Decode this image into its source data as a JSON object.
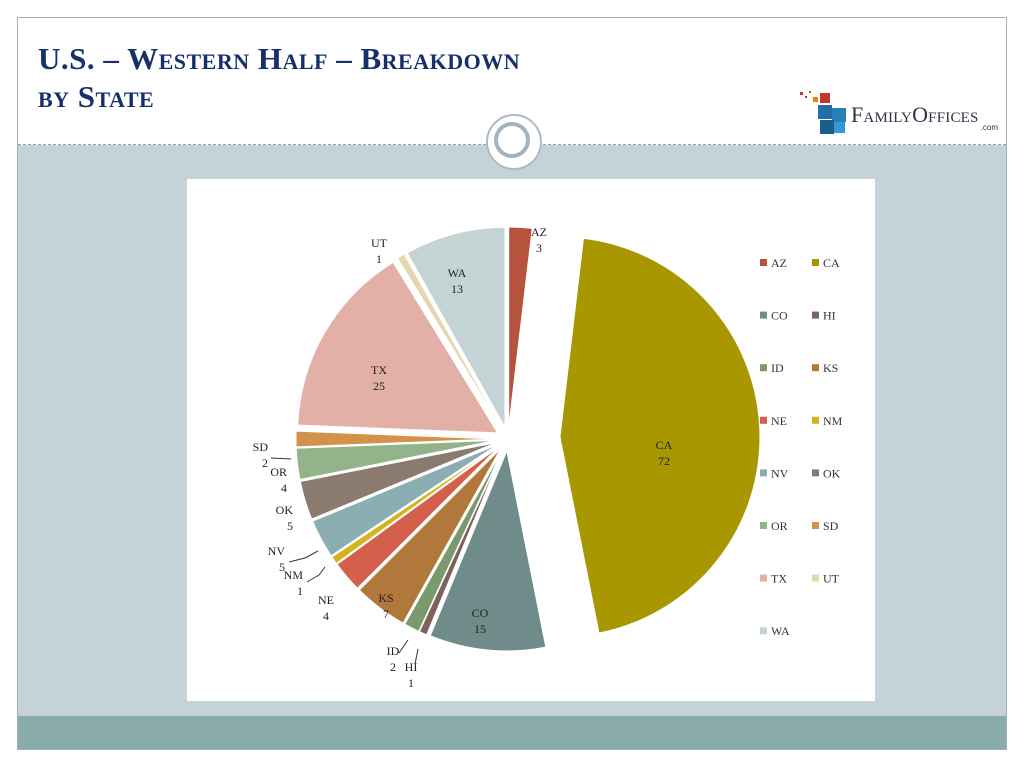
{
  "header": {
    "title_line1": "U.S. – Western Half – Breakdown",
    "title_line2": "by State"
  },
  "logo": {
    "word": "FamilyOffices",
    "suffix": ".com"
  },
  "colors": {
    "title": "#17306b",
    "frame_bg": "#c5d2d8",
    "footer": "#8aabab"
  },
  "chart_data": {
    "type": "pie",
    "exploded": true,
    "legend_position": "right",
    "series": [
      {
        "label": "AZ",
        "value": 3,
        "color": "#b5533c"
      },
      {
        "label": "CA",
        "value": 72,
        "color": "#a89700"
      },
      {
        "label": "CO",
        "value": 15,
        "color": "#6f8b8a"
      },
      {
        "label": "HI",
        "value": 1,
        "color": "#7b625a"
      },
      {
        "label": "ID",
        "value": 2,
        "color": "#7a9a6e"
      },
      {
        "label": "KS",
        "value": 7,
        "color": "#b0783a"
      },
      {
        "label": "NE",
        "value": 4,
        "color": "#d4604c"
      },
      {
        "label": "NM",
        "value": 1,
        "color": "#d2b51c"
      },
      {
        "label": "NV",
        "value": 5,
        "color": "#8aaeb2"
      },
      {
        "label": "OK",
        "value": 5,
        "color": "#8a7a70"
      },
      {
        "label": "OR",
        "value": 4,
        "color": "#93b38a"
      },
      {
        "label": "SD",
        "value": 2,
        "color": "#d3924a"
      },
      {
        "label": "TX",
        "value": 25,
        "color": "#e3b0a7"
      },
      {
        "label": "UT",
        "value": 1,
        "color": "#e3d7ad"
      },
      {
        "label": "WA",
        "value": 13,
        "color": "#c4d4d4"
      }
    ]
  }
}
